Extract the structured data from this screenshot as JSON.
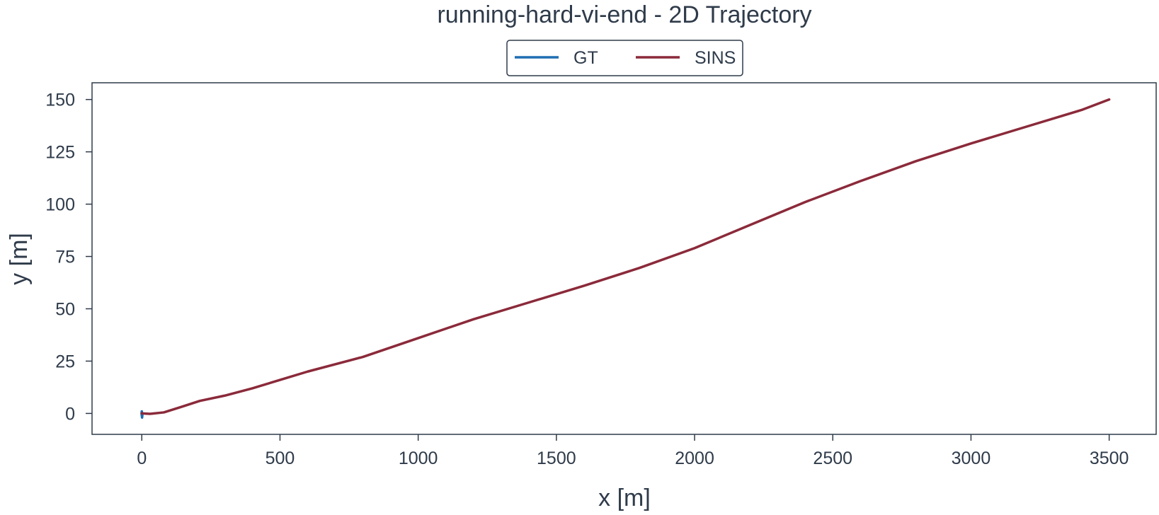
{
  "chart_data": {
    "type": "line",
    "title": "running-hard-vi-end - 2D Trajectory",
    "xlabel": "x [m]",
    "ylabel": "y [m]",
    "xlim": [
      -180,
      3670
    ],
    "ylim": [
      -10,
      158
    ],
    "xticks": [
      0,
      500,
      1000,
      1500,
      2000,
      2500,
      3000,
      3500
    ],
    "yticks": [
      0,
      25,
      50,
      75,
      100,
      125,
      150
    ],
    "grid": false,
    "legend_position": "top-center",
    "series": [
      {
        "name": "GT",
        "color": "#1f6fb2",
        "points": [
          [
            0,
            1
          ],
          [
            1,
            0
          ],
          [
            2,
            -1
          ],
          [
            1,
            -2
          ],
          [
            0,
            -1
          ],
          [
            -1,
            0
          ],
          [
            0,
            1
          ]
        ]
      },
      {
        "name": "SINS",
        "color": "#8b2a3a",
        "points": [
          [
            0,
            0
          ],
          [
            30,
            -0.2
          ],
          [
            80,
            0.5
          ],
          [
            140,
            3
          ],
          [
            210,
            6
          ],
          [
            300,
            8.5
          ],
          [
            400,
            12
          ],
          [
            500,
            16
          ],
          [
            600,
            20
          ],
          [
            800,
            27
          ],
          [
            1000,
            36
          ],
          [
            1200,
            45
          ],
          [
            1400,
            53
          ],
          [
            1600,
            61
          ],
          [
            1800,
            69.5
          ],
          [
            2000,
            79
          ],
          [
            2200,
            90
          ],
          [
            2400,
            101
          ],
          [
            2600,
            111
          ],
          [
            2800,
            120.5
          ],
          [
            3000,
            129
          ],
          [
            3200,
            137
          ],
          [
            3400,
            145
          ],
          [
            3500,
            150
          ]
        ]
      }
    ]
  }
}
